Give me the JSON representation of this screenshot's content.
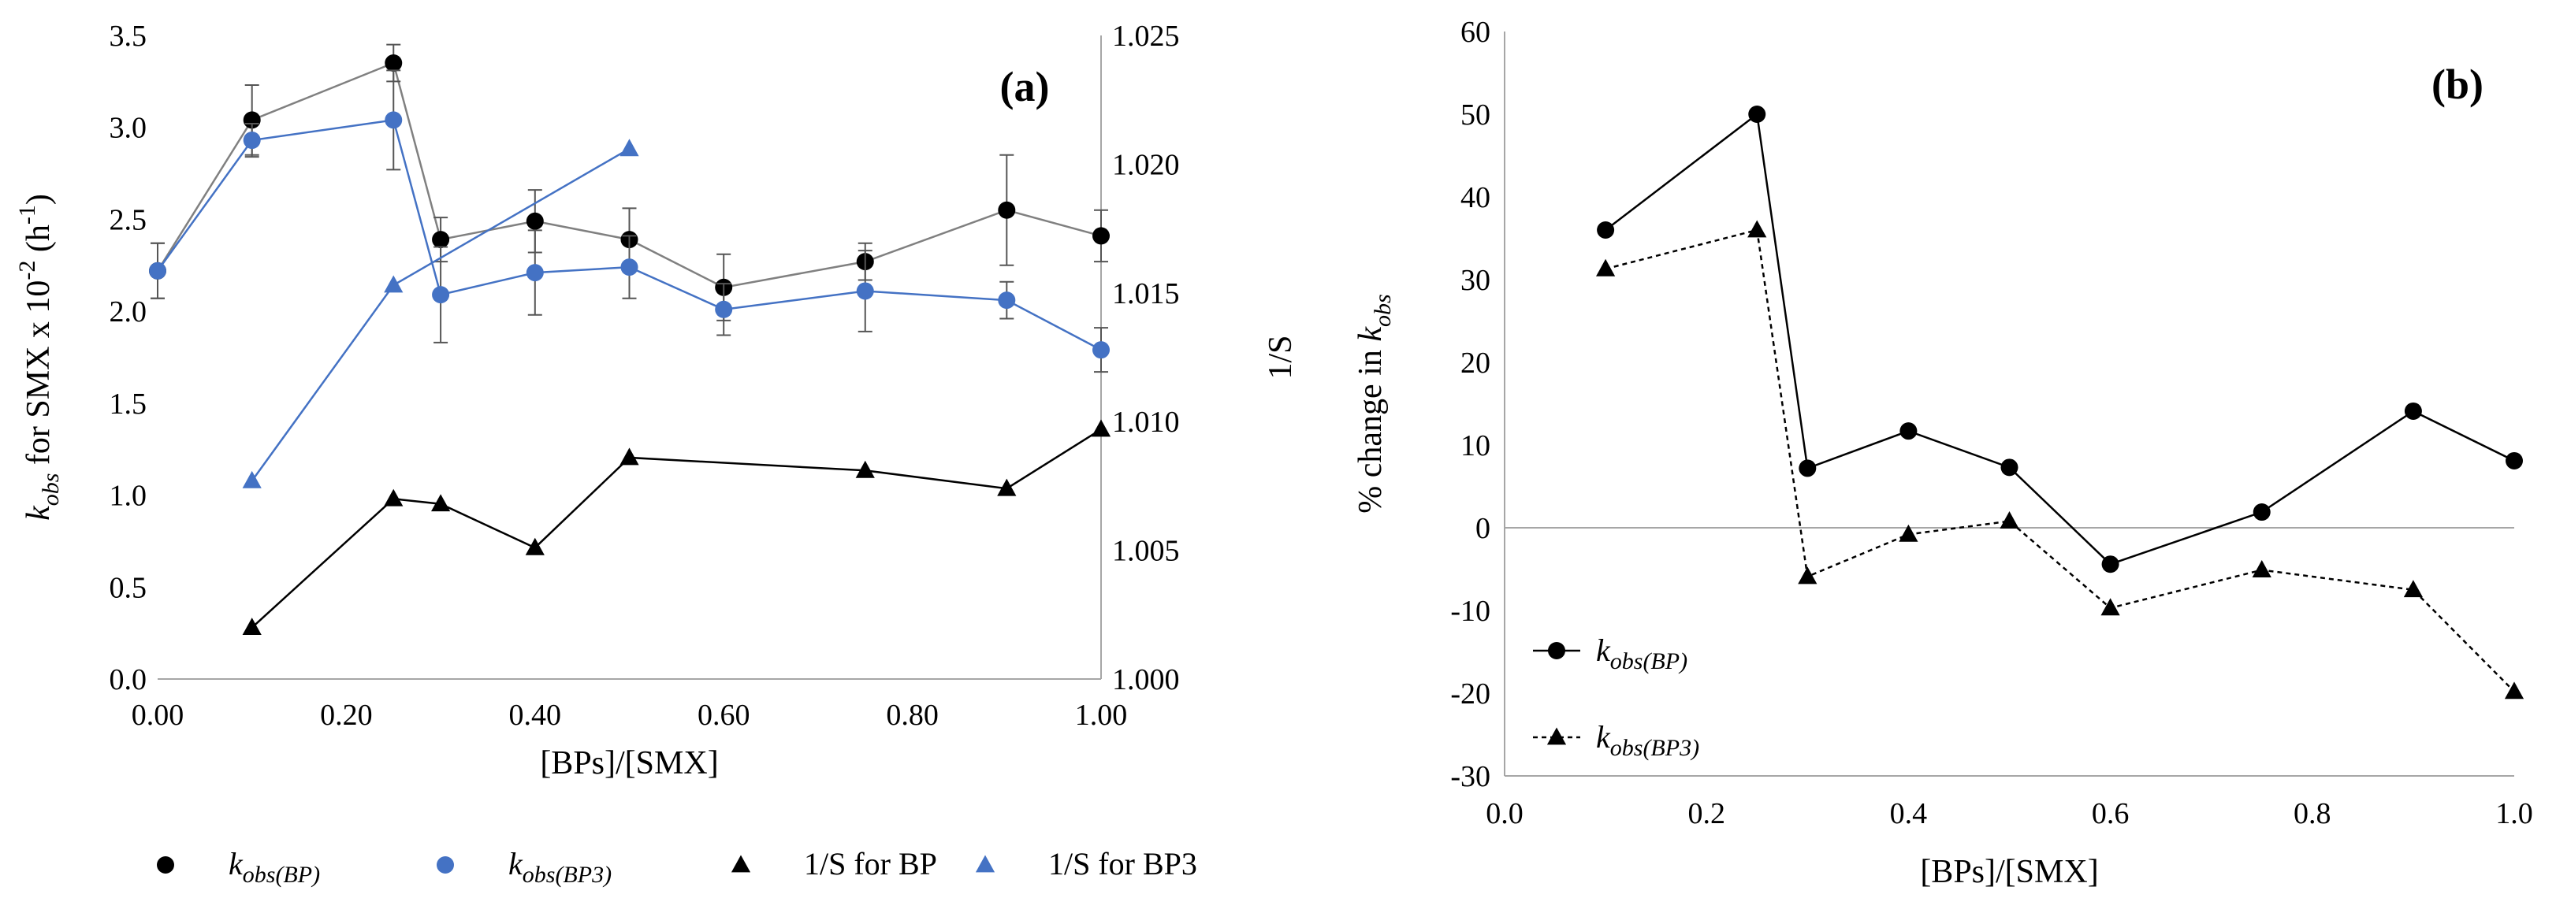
{
  "chart_data": [
    {
      "panel": "(a)",
      "type": "line",
      "xlabel": "[BPs]/[SMX]",
      "ylabel_parts": [
        "k",
        "obs",
        " for SMX x 10",
        "-2",
        " (h",
        "-1",
        ")"
      ],
      "y2label": "1/S",
      "xlim": [
        0,
        1
      ],
      "ylim": [
        0,
        3.5
      ],
      "y2lim": [
        1.0,
        1.025
      ],
      "xticks": [
        "0.00",
        "0.20",
        "0.40",
        "0.60",
        "0.80",
        "1.00"
      ],
      "yticks": [
        "0.0",
        "0.5",
        "1.0",
        "1.5",
        "2.0",
        "2.5",
        "3.0",
        "3.5"
      ],
      "y2ticks": [
        "1.000",
        "1.005",
        "1.010",
        "1.015",
        "1.020",
        "1.025"
      ],
      "series": [
        {
          "name": "kobs(BP)",
          "label_main": "k",
          "label_sub": "obs(BP)",
          "axis": "left",
          "marker": "circle",
          "color": "#000000",
          "line_color": "#808080",
          "x": [
            0,
            0.1,
            0.25,
            0.3,
            0.4,
            0.5,
            0.6,
            0.75,
            0.9,
            1.0
          ],
          "y": [
            2.22,
            3.04,
            3.35,
            2.39,
            2.49,
            2.39,
            2.13,
            2.27,
            2.55,
            2.41
          ],
          "err": [
            0.15,
            0.19,
            0.1,
            0.12,
            0.17,
            0.17,
            0.18,
            0.1,
            0.3,
            0.14
          ]
        },
        {
          "name": "kobs(BP3)",
          "label_main": "k",
          "label_sub": "obs(BP3)",
          "axis": "left",
          "marker": "circle",
          "color": "#4472C4",
          "line_color": "#4472C4",
          "x": [
            0,
            0.1,
            0.25,
            0.3,
            0.4,
            0.5,
            0.6,
            0.75,
            0.9,
            1.0
          ],
          "y": [
            2.22,
            2.93,
            3.04,
            2.09,
            2.21,
            2.24,
            2.01,
            2.11,
            2.06,
            1.79
          ],
          "err": [
            0.15,
            0.09,
            0.27,
            0.26,
            0.23,
            0.17,
            0.14,
            0.22,
            0.1,
            0.12
          ]
        },
        {
          "name": "1/S for BP",
          "label_main": "1/S for BP",
          "label_sub": "",
          "axis": "right",
          "marker": "triangle",
          "color": "#000000",
          "line_color": "#000000",
          "x": [
            0.1,
            0.25,
            0.3,
            0.4,
            0.5,
            0.75,
            0.9,
            1.0
          ],
          "y": [
            1.002,
            1.007,
            1.0068,
            1.0051,
            1.0086,
            1.0081,
            1.0074,
            1.0097
          ]
        },
        {
          "name": "1/S for BP3",
          "label_main": "1/S for BP3",
          "label_sub": "",
          "axis": "right",
          "marker": "triangle",
          "color": "#4472C4",
          "line_color": "#4472C4",
          "x": [
            0.1,
            0.25,
            0.5
          ],
          "y": [
            1.0077,
            1.0153,
            1.0206
          ]
        }
      ]
    },
    {
      "panel": "(b)",
      "type": "line",
      "xlabel": "[BPs]/[SMX]",
      "ylabel_parts": [
        "% change in ",
        "k",
        "obs"
      ],
      "xlim": [
        0,
        1
      ],
      "ylim": [
        -30,
        60
      ],
      "xticks": [
        "0.0",
        "0.2",
        "0.4",
        "0.6",
        "0.8",
        "1.0"
      ],
      "yticks": [
        "-30",
        "-20",
        "-10",
        "0",
        "10",
        "20",
        "30",
        "40",
        "50",
        "60"
      ],
      "series": [
        {
          "name": "kobs(BP)",
          "label_main": "k",
          "label_sub": "obs(BP)",
          "marker": "circle",
          "color": "#000000",
          "dash": false,
          "x": [
            0.1,
            0.25,
            0.3,
            0.4,
            0.5,
            0.6,
            0.75,
            0.9,
            1.0
          ],
          "y": [
            36,
            50,
            7.2,
            11.7,
            7.3,
            -4.4,
            1.9,
            14.1,
            8.1
          ]
        },
        {
          "name": "kobs(BP3)",
          "label_main": "k",
          "label_sub": "obs(BP3)",
          "marker": "triangle",
          "color": "#000000",
          "dash": true,
          "x": [
            0.1,
            0.25,
            0.3,
            0.4,
            0.5,
            0.6,
            0.75,
            0.9,
            1.0
          ],
          "y": [
            31.3,
            36,
            -5.9,
            -0.8,
            0.8,
            -9.7,
            -5.1,
            -7.5,
            -19.8
          ]
        }
      ]
    }
  ]
}
